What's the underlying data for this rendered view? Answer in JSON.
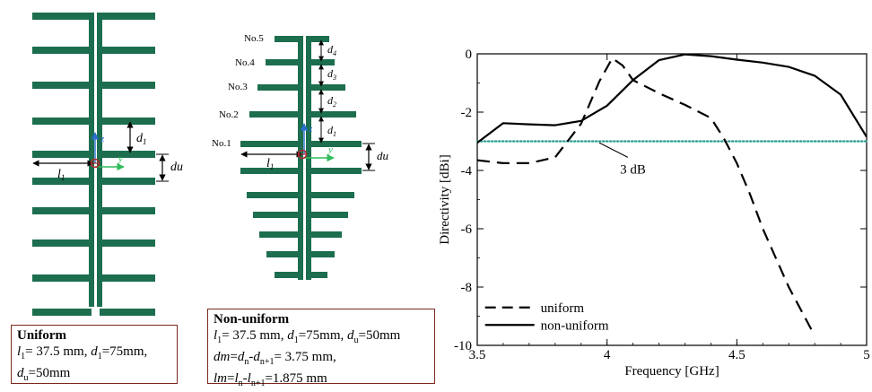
{
  "colors": {
    "antenna": "#1c6e4e",
    "three_db_line": "#2a9d8f",
    "axis_z": "#2a6ecf",
    "axis_y": "#2ebc5a",
    "feed": "#b0282e",
    "caption_border": "#7a2a20"
  },
  "uniform_diagram": {
    "label_l1": "l",
    "label_l1_sub": "1",
    "label_d1": "d",
    "label_d1_sub": "1",
    "label_du": "du",
    "axis_z": "z",
    "axis_y": "y"
  },
  "nonuniform_diagram": {
    "element_labels": [
      "No.1",
      "No.2",
      "No.3",
      "No.4",
      "No.5"
    ],
    "spacing_labels": [
      "d",
      "d",
      "d",
      "d"
    ],
    "spacing_subs": [
      "1",
      "2",
      "3",
      "4"
    ],
    "label_l1": "l",
    "label_l1_sub": "1",
    "label_du": "du",
    "axis_z": "z",
    "axis_y": "y"
  },
  "captions": {
    "uniform": {
      "title": "Uniform",
      "line1": {
        "a": "l",
        "a_sub": "1",
        "b": "= 37.5 mm, ",
        "c": "d",
        "c_sub": "1",
        "d": "=75mm,"
      },
      "line2": {
        "a": "d",
        "a_sub": "u",
        "b": "=50mm"
      }
    },
    "nonuniform": {
      "title": "Non-uniform",
      "line1": {
        "a": "l",
        "a_sub": "1",
        "b": "= 37.5 mm, ",
        "c": "d",
        "c_sub": "1",
        "d": "=75mm, ",
        "e": "d",
        "e_sub": "u",
        "f": "=50mm"
      },
      "line2": {
        "a": "dm",
        "b": "=",
        "c": "d",
        "c_sub": "n",
        "d": "-",
        "e": "d",
        "e_sub": "n+1",
        "f": "= 3.75 mm,"
      },
      "line3": {
        "a": "lm",
        "b": "=",
        "c": "l",
        "c_sub": "n",
        "d": "-",
        "e": "l",
        "e_sub": "n+1",
        "f": "=1.875 mm"
      }
    }
  },
  "chart_data": {
    "type": "line",
    "title": "",
    "xlabel": "Frequency [GHz]",
    "ylabel": "Directivity [dBi]",
    "xlim": [
      3.5,
      5
    ],
    "ylim": [
      -10,
      0
    ],
    "xticks": [
      3.5,
      4,
      4.5,
      5
    ],
    "yticks": [
      0,
      -2,
      -4,
      -6,
      -8,
      -10
    ],
    "xtick_labels": [
      "3.5",
      "4",
      "4.5",
      "5"
    ],
    "ytick_labels": [
      "0",
      "-2",
      "-4",
      "-6",
      "-8",
      "-10"
    ],
    "grid": false,
    "legend_position": "bottom-left",
    "reference_line": {
      "y": -3,
      "label": "3 dB",
      "style": "dotted"
    },
    "series": [
      {
        "name": "uniform",
        "style": "dashed",
        "x": [
          3.5,
          3.6,
          3.7,
          3.8,
          3.9,
          3.97,
          4.02,
          4.06,
          4.1,
          4.2,
          4.3,
          4.4,
          4.45,
          4.5,
          4.55,
          4.6,
          4.7,
          4.79
        ],
        "y": [
          -3.65,
          -3.75,
          -3.75,
          -3.55,
          -2.4,
          -0.95,
          -0.15,
          -0.4,
          -0.9,
          -1.35,
          -1.75,
          -2.2,
          -2.9,
          -3.75,
          -4.8,
          -6.0,
          -8.0,
          -9.5
        ]
      },
      {
        "name": "non-uniform",
        "style": "solid",
        "x": [
          3.5,
          3.6,
          3.7,
          3.8,
          3.9,
          4.0,
          4.1,
          4.2,
          4.3,
          4.4,
          4.5,
          4.6,
          4.7,
          4.8,
          4.9,
          5.0
        ],
        "y": [
          -3.05,
          -2.38,
          -2.42,
          -2.45,
          -2.3,
          -1.78,
          -0.9,
          -0.22,
          -0.02,
          -0.08,
          -0.2,
          -0.3,
          -0.45,
          -0.75,
          -1.4,
          -2.85
        ]
      }
    ]
  }
}
